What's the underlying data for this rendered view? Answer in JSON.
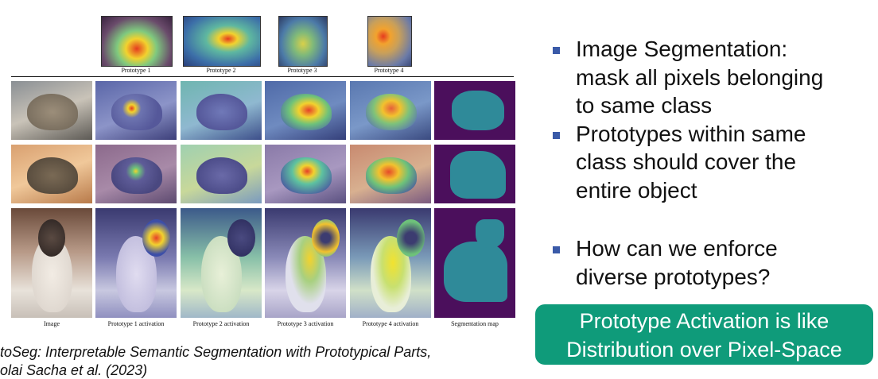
{
  "figure": {
    "prototype_labels": [
      "Prototype 1",
      "Prototype 2",
      "Prototype 3",
      "Prototype 4"
    ],
    "column_labels": [
      "Image",
      "Prototype 1 activation",
      "Prototype 2 activation",
      "Prototype 3 activation",
      "Prototype 4 activation",
      "Segmentation map"
    ],
    "colors": {
      "mask_bg": "#4b0f5c",
      "mask_fg": "#2f8a99",
      "heat_hot": "#e53b1f",
      "heat_warm": "#f2d22e",
      "heat_cool": "#3c4ea8"
    }
  },
  "caption": {
    "line1": "toSeg: Interpretable Semantic Segmentation with Prototypical Parts,",
    "line2": "olai Sacha et al. (2023)"
  },
  "bullets": [
    {
      "lines": [
        "Image Segmentation:",
        "mask all pixels belonging",
        "to same class"
      ]
    },
    {
      "lines": [
        "Prototypes within same",
        "class should cover the",
        "entire object"
      ]
    },
    {
      "lines": [
        "How can we enforce",
        "diverse prototypes?"
      ]
    }
  ],
  "callout": {
    "line1": "Prototype Activation is like",
    "line2": "Distribution over Pixel-Space"
  }
}
